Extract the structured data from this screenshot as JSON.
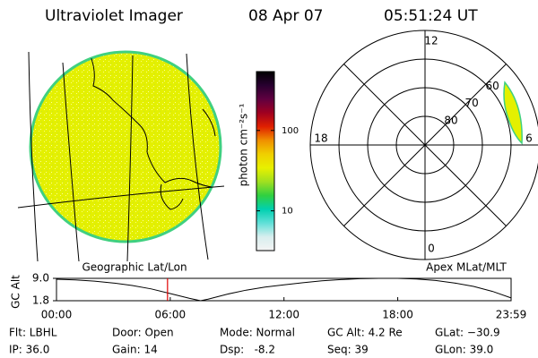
{
  "header": {
    "instrument": "Ultraviolet Imager",
    "date": "08 Apr 07",
    "time": "05:51:24 UT"
  },
  "image_panel": {
    "label": "Geographic Lat/Lon"
  },
  "colorbar": {
    "label": "photon cm⁻²s⁻¹",
    "log": true,
    "lim": [
      3.2,
      540
    ],
    "ticks": [
      10,
      100
    ],
    "colors": [
      "#f4f4f4",
      "#d8eeee",
      "#60e0d8",
      "#00d0b0",
      "#30d040",
      "#a0e020",
      "#e8f000",
      "#f0d000",
      "#f09000",
      "#e02000",
      "#a00020",
      "#600040",
      "#280030",
      "#000000"
    ]
  },
  "polar": {
    "label": "Apex MLat/MLT",
    "mlat_lim": [
      90,
      50
    ],
    "mlat_ticks": [
      60,
      70,
      80
    ],
    "mlt_ticks": [
      12,
      18,
      6,
      0
    ]
  },
  "chart_data": {
    "type": "line",
    "ylabel": "GC Alt",
    "x": [
      0,
      1,
      2,
      3,
      4,
      5,
      6,
      7,
      7.6,
      8,
      9,
      10,
      11,
      12,
      13,
      14,
      15,
      16,
      17,
      18,
      19,
      20,
      21,
      22,
      23,
      23.98
    ],
    "values": [
      8.7,
      8.5,
      8.1,
      7.5,
      6.7,
      5.6,
      4.1,
      2.6,
      1.8,
      2.3,
      3.9,
      5.2,
      6.2,
      6.9,
      7.6,
      8.2,
      8.6,
      8.9,
      9.0,
      9.0,
      8.8,
      8.3,
      7.5,
      6.4,
      4.8,
      2.7
    ],
    "color": "#000000",
    "cursor_x": 5.857,
    "cursor_color": "#e00000",
    "xlim": [
      0,
      23.98
    ],
    "xticks": [
      {
        "value": 0,
        "label": "00:00"
      },
      {
        "value": 6,
        "label": "06:00"
      },
      {
        "value": 12,
        "label": "12:00"
      },
      {
        "value": 18,
        "label": "18:00"
      },
      {
        "value": 23.98,
        "label": "23:59"
      }
    ],
    "ylim": [
      1.8,
      9.0
    ],
    "yticks": [
      {
        "value": 9.0,
        "label": "9.0"
      },
      {
        "value": 1.8,
        "label": "1.8"
      }
    ]
  },
  "footer": {
    "rows": [
      [
        "Flt: LBHL",
        "Door: Open",
        "Mode: Normal",
        "GC Alt: 4.2 Re",
        "GLat: −30.9"
      ],
      [
        "IP: 36.0",
        "Gain: 14",
        "Dsp:   -8.2",
        "Seq: 39",
        "GLon: 39.0"
      ]
    ]
  }
}
